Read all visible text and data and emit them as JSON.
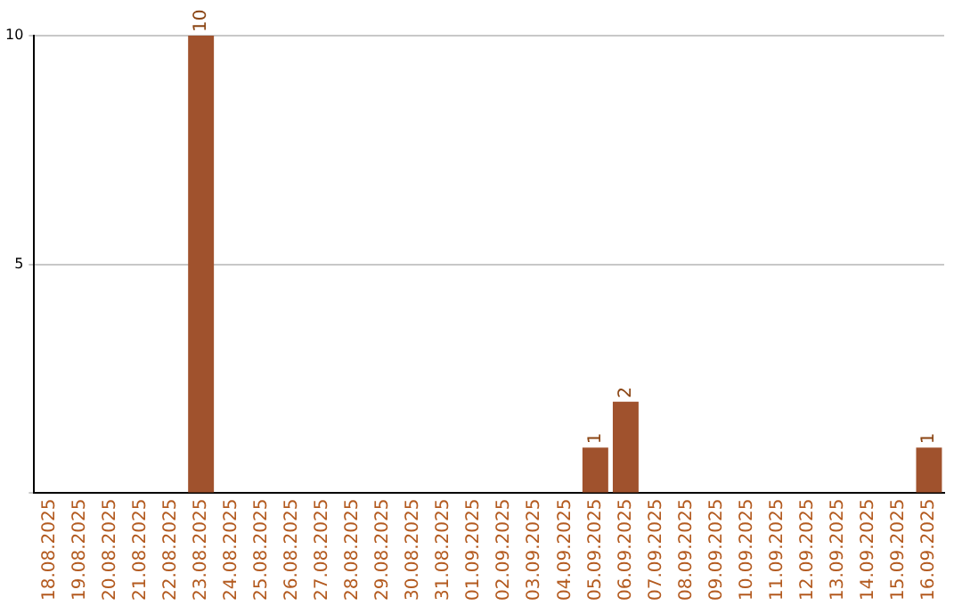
{
  "chart_data": {
    "type": "bar",
    "categories": [
      "18.08.2025",
      "19.08.2025",
      "20.08.2025",
      "21.08.2025",
      "22.08.2025",
      "23.08.2025",
      "24.08.2025",
      "25.08.2025",
      "26.08.2025",
      "27.08.2025",
      "28.08.2025",
      "29.08.2025",
      "30.08.2025",
      "31.08.2025",
      "01.09.2025",
      "02.09.2025",
      "03.09.2025",
      "04.09.2025",
      "05.09.2025",
      "06.09.2025",
      "07.09.2025",
      "08.09.2025",
      "09.09.2025",
      "10.09.2025",
      "11.09.2025",
      "12.09.2025",
      "13.09.2025",
      "14.09.2025",
      "15.09.2025",
      "16.09.2025"
    ],
    "values": [
      0,
      0,
      0,
      0,
      0,
      10,
      0,
      0,
      0,
      0,
      0,
      0,
      0,
      0,
      0,
      0,
      0,
      0,
      1,
      2,
      0,
      0,
      0,
      0,
      0,
      0,
      0,
      0,
      0,
      1
    ],
    "value_labels": [
      null,
      null,
      null,
      null,
      null,
      "10",
      null,
      null,
      null,
      null,
      null,
      null,
      null,
      null,
      null,
      null,
      null,
      null,
      "1",
      "2",
      null,
      null,
      null,
      null,
      null,
      null,
      null,
      null,
      null,
      "1"
    ],
    "color": "#a0522d",
    "ylim": [
      0,
      10
    ],
    "yticks": [
      {
        "value": 0,
        "label": null
      },
      5,
      10
    ],
    "grid": "y",
    "legend": false
  }
}
